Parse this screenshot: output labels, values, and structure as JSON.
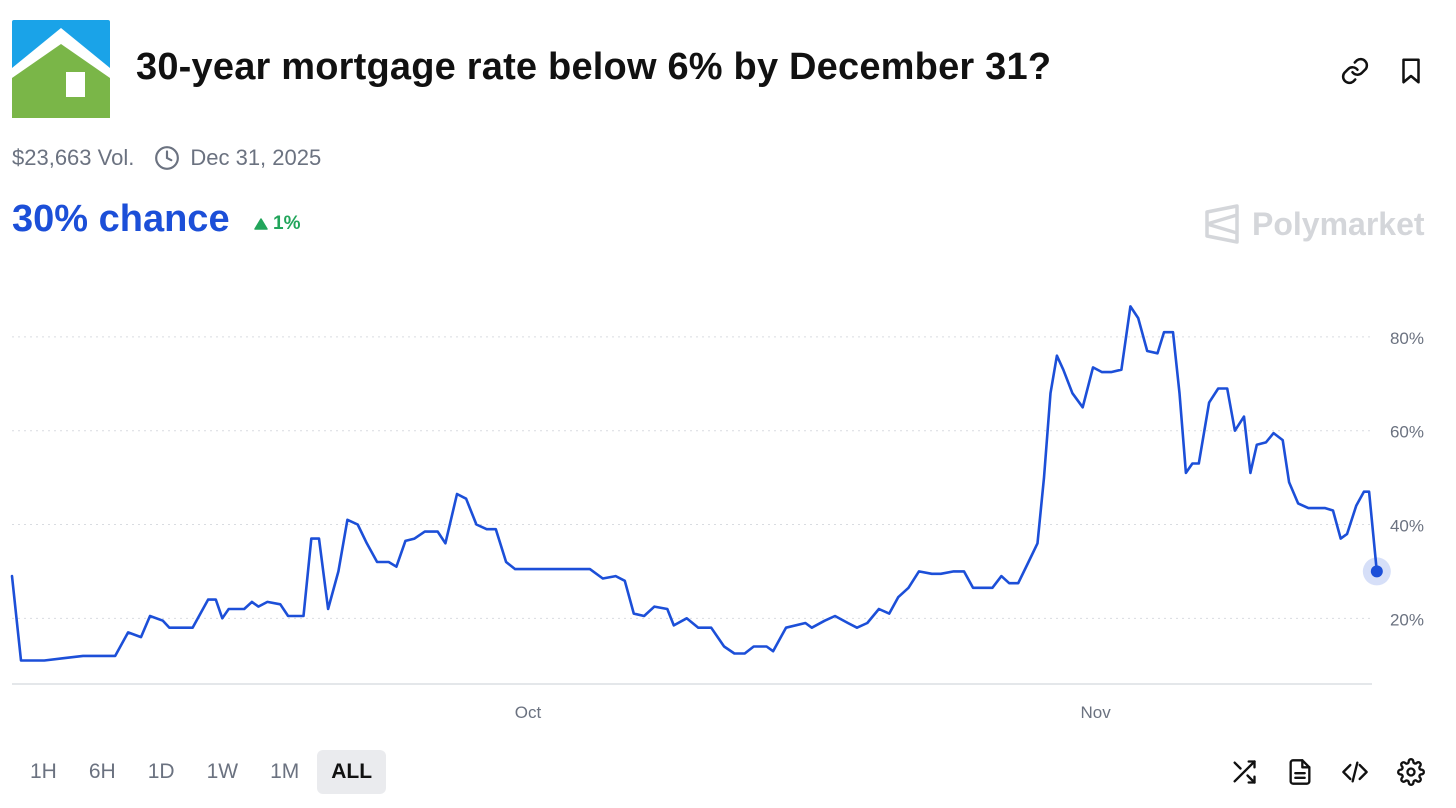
{
  "header": {
    "title": "30-year mortgage rate below 6% by December 31?",
    "logo_icon": "house-icon",
    "actions": [
      {
        "name": "link-icon"
      },
      {
        "name": "bookmark-icon"
      }
    ]
  },
  "meta": {
    "volume": "$23,663 Vol.",
    "end_date": "Dec 31, 2025"
  },
  "stats": {
    "chance_label": "30% chance",
    "delta": "1%",
    "delta_direction": "up"
  },
  "brand": {
    "name": "Polymarket"
  },
  "colors": {
    "accent": "#1c4fd8",
    "positive": "#22a55b",
    "logo_sky": "#1aa3e8",
    "logo_house": "#7ab648",
    "muted_text": "#6b7280"
  },
  "time_ranges": [
    "1H",
    "6H",
    "1D",
    "1W",
    "1M",
    "ALL"
  ],
  "selected_range": "ALL",
  "toolbar_icons": [
    "shuffle-icon",
    "document-icon",
    "code-icon",
    "settings-icon"
  ],
  "chart_data": {
    "type": "line",
    "title": "",
    "xlabel": "",
    "ylabel": "",
    "x_ticks": [
      {
        "label": "Oct",
        "t": 0.4
      },
      {
        "label": "Nov",
        "t": 0.84
      }
    ],
    "y_ticks": [
      20,
      40,
      60,
      80
    ],
    "y_tick_labels": [
      "20%",
      "40%",
      "60%",
      "80%"
    ],
    "ylim": [
      6,
      90
    ],
    "grid": "horizontal-dotted",
    "series": [
      {
        "points": [
          [
            0.0,
            29
          ],
          [
            0.007,
            11
          ],
          [
            0.015,
            11
          ],
          [
            0.025,
            11
          ],
          [
            0.04,
            11.5
          ],
          [
            0.055,
            12
          ],
          [
            0.08,
            12
          ],
          [
            0.09,
            17
          ],
          [
            0.1,
            16
          ],
          [
            0.107,
            20.5
          ],
          [
            0.117,
            19.5
          ],
          [
            0.122,
            18
          ],
          [
            0.14,
            18
          ],
          [
            0.152,
            24
          ],
          [
            0.158,
            24
          ],
          [
            0.163,
            20
          ],
          [
            0.168,
            22
          ],
          [
            0.18,
            22
          ],
          [
            0.186,
            23.5
          ],
          [
            0.191,
            22.5
          ],
          [
            0.198,
            23.5
          ],
          [
            0.208,
            23
          ],
          [
            0.214,
            20.5
          ],
          [
            0.226,
            20.5
          ],
          [
            0.232,
            37
          ],
          [
            0.238,
            37
          ],
          [
            0.245,
            22
          ],
          [
            0.253,
            30
          ],
          [
            0.26,
            41
          ],
          [
            0.268,
            40
          ],
          [
            0.275,
            36
          ],
          [
            0.283,
            32
          ],
          [
            0.292,
            32
          ],
          [
            0.298,
            31
          ],
          [
            0.305,
            36.5
          ],
          [
            0.312,
            37
          ],
          [
            0.32,
            38.5
          ],
          [
            0.33,
            38.5
          ],
          [
            0.336,
            36
          ],
          [
            0.345,
            46.5
          ],
          [
            0.352,
            45.5
          ],
          [
            0.36,
            40
          ],
          [
            0.368,
            39
          ],
          [
            0.375,
            39
          ],
          [
            0.383,
            32
          ],
          [
            0.39,
            30.5
          ],
          [
            0.42,
            30.5
          ],
          [
            0.448,
            30.5
          ],
          [
            0.458,
            28.5
          ],
          [
            0.468,
            29
          ],
          [
            0.475,
            28
          ],
          [
            0.482,
            21
          ],
          [
            0.49,
            20.5
          ],
          [
            0.498,
            22.5
          ],
          [
            0.508,
            22
          ],
          [
            0.513,
            18.5
          ],
          [
            0.523,
            20
          ],
          [
            0.532,
            18
          ],
          [
            0.542,
            18
          ],
          [
            0.552,
            14
          ],
          [
            0.56,
            12.5
          ],
          [
            0.568,
            12.5
          ],
          [
            0.575,
            14
          ],
          [
            0.585,
            14
          ],
          [
            0.59,
            13
          ],
          [
            0.6,
            18
          ],
          [
            0.615,
            19
          ],
          [
            0.62,
            18
          ],
          [
            0.63,
            19.5
          ],
          [
            0.638,
            20.5
          ],
          [
            0.648,
            19
          ],
          [
            0.655,
            18
          ],
          [
            0.663,
            19
          ],
          [
            0.672,
            22
          ],
          [
            0.68,
            21
          ],
          [
            0.687,
            24.5
          ],
          [
            0.695,
            26.5
          ],
          [
            0.703,
            30
          ],
          [
            0.713,
            29.5
          ],
          [
            0.72,
            29.5
          ],
          [
            0.73,
            30
          ],
          [
            0.738,
            30
          ],
          [
            0.745,
            26.5
          ],
          [
            0.76,
            26.5
          ],
          [
            0.767,
            29
          ],
          [
            0.773,
            27.5
          ],
          [
            0.78,
            27.5
          ],
          [
            0.788,
            32
          ],
          [
            0.795,
            36
          ],
          [
            0.8,
            50
          ],
          [
            0.805,
            68
          ],
          [
            0.81,
            76
          ],
          [
            0.815,
            73
          ],
          [
            0.822,
            68
          ],
          [
            0.83,
            65
          ],
          [
            0.838,
            73.5
          ],
          [
            0.845,
            72.5
          ],
          [
            0.852,
            72.5
          ],
          [
            0.86,
            73
          ],
          [
            0.867,
            86.5
          ],
          [
            0.873,
            84
          ],
          [
            0.88,
            77
          ],
          [
            0.888,
            76.5
          ],
          [
            0.893,
            81
          ],
          [
            0.9,
            81
          ],
          [
            0.905,
            68
          ],
          [
            0.91,
            51
          ],
          [
            0.915,
            53
          ],
          [
            0.92,
            53
          ],
          [
            0.928,
            66
          ],
          [
            0.935,
            69
          ],
          [
            0.942,
            69
          ],
          [
            0.948,
            60
          ],
          [
            0.955,
            63
          ],
          [
            0.96,
            51
          ],
          [
            0.965,
            57
          ],
          [
            0.972,
            57.5
          ],
          [
            0.978,
            59.5
          ],
          [
            0.985,
            58
          ],
          [
            0.99,
            49
          ],
          [
            0.997,
            44.5
          ],
          [
            1.005,
            43.5
          ],
          [
            1.018,
            43.5
          ],
          [
            1.024,
            43
          ],
          [
            1.03,
            37
          ],
          [
            1.035,
            38
          ],
          [
            1.042,
            44
          ],
          [
            1.048,
            47
          ],
          [
            1.052,
            47
          ],
          [
            1.058,
            30
          ]
        ]
      }
    ],
    "current_value": 30
  }
}
